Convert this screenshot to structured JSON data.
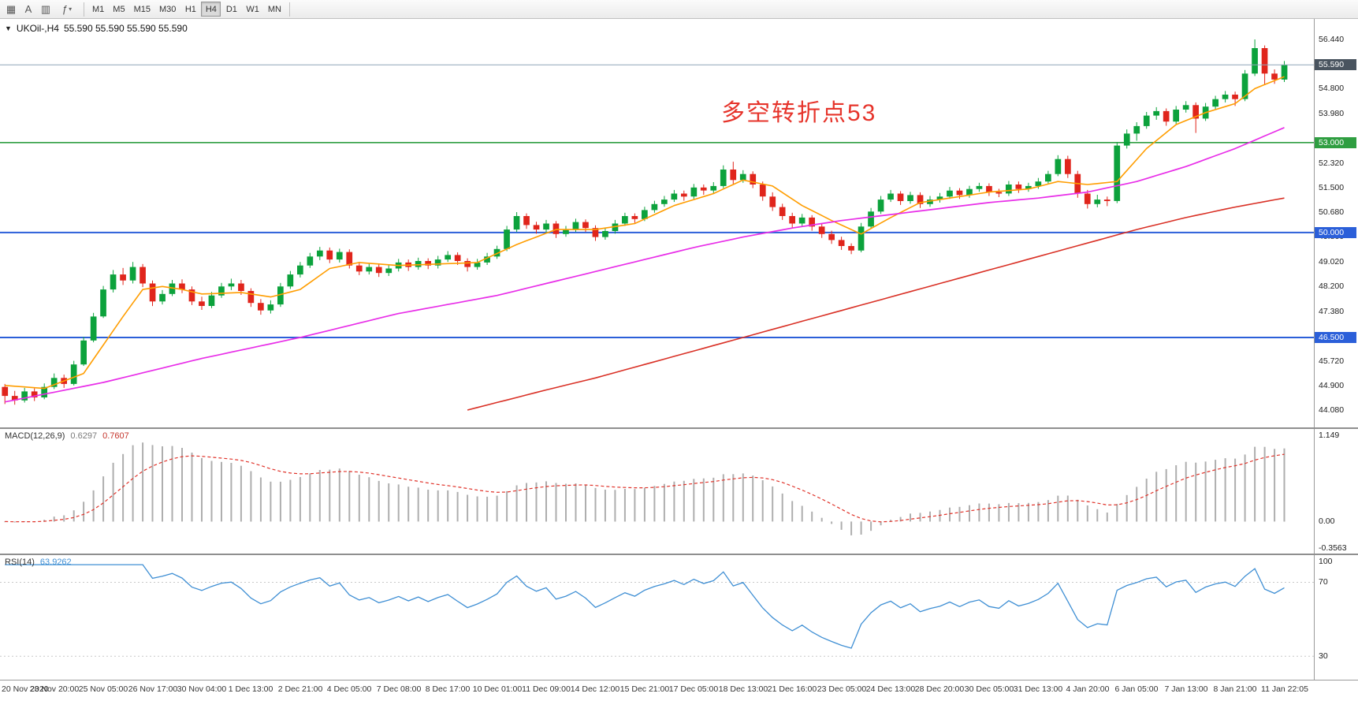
{
  "toolbar": {
    "icons": [
      {
        "name": "chart-grid-icon",
        "glyph": "▦"
      },
      {
        "name": "text-tool-icon",
        "glyph": "A"
      },
      {
        "name": "chart-type-icon",
        "glyph": "▥"
      },
      {
        "name": "indicators-icon",
        "glyph": "ƒ"
      },
      {
        "name": "caret-down-icon",
        "glyph": "▾"
      }
    ],
    "timeframes": [
      "M1",
      "M5",
      "M15",
      "M30",
      "H1",
      "H4",
      "D1",
      "W1",
      "MN"
    ],
    "active_timeframe": "H4"
  },
  "chart": {
    "header": {
      "collapse_icon": "▼",
      "symbol": "UKOil-,H4",
      "ohlc": "55.590 55.590 55.590 55.590"
    },
    "annotation": {
      "text": "多空转折点53",
      "color": "#e6342b"
    },
    "ylim": [
      44.08,
      56.44
    ],
    "price_axis_labels": [
      "56.440",
      "54.800",
      "53.980",
      "52.320",
      "51.500",
      "50.680",
      "49.860",
      "49.020",
      "48.200",
      "47.380",
      "45.720",
      "44.900",
      "44.080"
    ],
    "price_tags": [
      {
        "value": 55.59,
        "label": "55.590",
        "bg": "#49545f"
      },
      {
        "value": 53.0,
        "label": "53.000",
        "bg": "#2f9e41"
      },
      {
        "value": 50.0,
        "label": "50.000",
        "bg": "#2b5fd9"
      },
      {
        "value": 46.5,
        "label": "46.500",
        "bg": "#2b5fd9"
      }
    ],
    "hlines": [
      {
        "value": 53.0,
        "color": "#2f9e41",
        "width": 1.6
      },
      {
        "value": 50.0,
        "color": "#2b5fd9",
        "width": 2
      },
      {
        "value": 46.5,
        "color": "#2b5fd9",
        "width": 2
      }
    ],
    "bid_line": {
      "value": 55.59,
      "color": "#8fa6b8"
    }
  },
  "macd_panel": {
    "label": "MACD(12,26,9)",
    "value_main": "0.6297",
    "value_signal": "0.7607",
    "axis_labels": [
      "1.149",
      "0.00",
      "-0.3563"
    ],
    "ylim": [
      -0.3563,
      1.149
    ]
  },
  "rsi_panel": {
    "label": "RSI(14)",
    "value": "63.9262",
    "axis_labels": [
      "100",
      "70",
      "30"
    ],
    "levels": [
      70,
      30
    ],
    "ylim": [
      19,
      83
    ]
  },
  "time_axis": {
    "labels": [
      "20 Nov 2020",
      "23 Nov 20:00",
      "25 Nov 05:00",
      "26 Nov 17:00",
      "30 Nov 04:00",
      "1 Dec 13:00",
      "2 Dec 21:00",
      "4 Dec 05:00",
      "7 Dec 08:00",
      "8 Dec 17:00",
      "10 Dec 01:00",
      "11 Dec 09:00",
      "14 Dec 12:00",
      "15 Dec 21:00",
      "17 Dec 05:00",
      "18 Dec 13:00",
      "21 Dec 16:00",
      "23 Dec 05:00",
      "24 Dec 13:00",
      "28 Dec 20:00",
      "30 Dec 05:00",
      "31 Dec 13:00",
      "4 Jan 20:00",
      "6 Jan 05:00",
      "7 Jan 13:00",
      "8 Jan 21:00",
      "11 Jan 22:05"
    ],
    "labels_every_n_candles": 5
  },
  "chart_data": {
    "type": "candlestick",
    "symbol": "UKOil-",
    "timeframe": "H4",
    "up_color": "#0ca23c",
    "down_color": "#e0251c",
    "ylim": [
      44.08,
      56.44
    ],
    "candles": [
      [
        44.85,
        44.95,
        44.28,
        44.55
      ],
      [
        44.55,
        44.72,
        44.26,
        44.4
      ],
      [
        44.4,
        44.82,
        44.33,
        44.7
      ],
      [
        44.7,
        44.8,
        44.38,
        44.5
      ],
      [
        44.5,
        44.97,
        44.44,
        44.85
      ],
      [
        44.85,
        45.3,
        44.78,
        45.15
      ],
      [
        45.15,
        45.26,
        44.82,
        44.95
      ],
      [
        44.95,
        45.72,
        44.9,
        45.6
      ],
      [
        45.6,
        46.52,
        45.55,
        46.4
      ],
      [
        46.4,
        47.32,
        46.34,
        47.2
      ],
      [
        47.2,
        48.22,
        47.15,
        48.1
      ],
      [
        48.1,
        48.75,
        48.0,
        48.6
      ],
      [
        48.6,
        48.82,
        48.25,
        48.4
      ],
      [
        48.4,
        49.02,
        48.3,
        48.85
      ],
      [
        48.85,
        48.95,
        48.18,
        48.3
      ],
      [
        48.3,
        48.4,
        47.55,
        47.7
      ],
      [
        47.7,
        48.08,
        47.6,
        47.95
      ],
      [
        47.95,
        48.42,
        47.88,
        48.3
      ],
      [
        48.3,
        48.44,
        47.98,
        48.1
      ],
      [
        48.1,
        48.2,
        47.58,
        47.7
      ],
      [
        47.7,
        47.86,
        47.42,
        47.55
      ],
      [
        47.55,
        48.02,
        47.48,
        47.9
      ],
      [
        47.9,
        48.32,
        47.82,
        48.2
      ],
      [
        48.2,
        48.46,
        48.08,
        48.3
      ],
      [
        48.3,
        48.42,
        47.92,
        48.05
      ],
      [
        48.05,
        48.14,
        47.52,
        47.65
      ],
      [
        47.65,
        47.78,
        47.26,
        47.4
      ],
      [
        47.4,
        47.74,
        47.3,
        47.6
      ],
      [
        47.6,
        48.32,
        47.52,
        48.2
      ],
      [
        48.2,
        48.72,
        48.12,
        48.6
      ],
      [
        48.6,
        49.02,
        48.5,
        48.9
      ],
      [
        48.9,
        49.32,
        48.82,
        49.2
      ],
      [
        49.2,
        49.52,
        49.08,
        49.4
      ],
      [
        49.4,
        49.5,
        48.98,
        49.1
      ],
      [
        49.1,
        49.46,
        49.0,
        49.35
      ],
      [
        49.35,
        49.44,
        48.8,
        48.9
      ],
      [
        48.9,
        49.02,
        48.58,
        48.7
      ],
      [
        48.7,
        48.98,
        48.6,
        48.85
      ],
      [
        48.85,
        48.95,
        48.52,
        48.65
      ],
      [
        48.65,
        48.92,
        48.55,
        48.8
      ],
      [
        48.8,
        49.12,
        48.7,
        49.0
      ],
      [
        49.0,
        49.1,
        48.72,
        48.85
      ],
      [
        48.85,
        49.16,
        48.76,
        49.05
      ],
      [
        49.05,
        49.14,
        48.78,
        48.9
      ],
      [
        48.9,
        49.22,
        48.8,
        49.1
      ],
      [
        49.1,
        49.38,
        49.02,
        49.25
      ],
      [
        49.25,
        49.34,
        48.92,
        49.05
      ],
      [
        49.05,
        49.14,
        48.7,
        48.85
      ],
      [
        48.85,
        49.12,
        48.76,
        49.0
      ],
      [
        49.0,
        49.32,
        48.92,
        49.2
      ],
      [
        49.2,
        49.56,
        49.12,
        49.45
      ],
      [
        49.45,
        50.22,
        49.38,
        50.1
      ],
      [
        50.1,
        50.68,
        50.02,
        50.55
      ],
      [
        50.55,
        50.64,
        50.12,
        50.25
      ],
      [
        50.25,
        50.36,
        49.96,
        50.1
      ],
      [
        50.1,
        50.42,
        50.0,
        50.3
      ],
      [
        50.3,
        50.38,
        49.82,
        49.95
      ],
      [
        49.95,
        50.22,
        49.86,
        50.1
      ],
      [
        50.1,
        50.46,
        50.02,
        50.35
      ],
      [
        50.35,
        50.44,
        50.02,
        50.15
      ],
      [
        50.15,
        50.24,
        49.72,
        49.85
      ],
      [
        49.85,
        50.16,
        49.76,
        50.05
      ],
      [
        50.05,
        50.42,
        49.96,
        50.3
      ],
      [
        50.3,
        50.66,
        50.22,
        50.55
      ],
      [
        50.55,
        50.64,
        50.32,
        50.45
      ],
      [
        50.45,
        50.86,
        50.38,
        50.75
      ],
      [
        50.75,
        51.06,
        50.66,
        50.95
      ],
      [
        50.95,
        51.22,
        50.86,
        51.1
      ],
      [
        51.1,
        51.42,
        51.02,
        51.3
      ],
      [
        51.3,
        51.4,
        51.06,
        51.2
      ],
      [
        51.2,
        51.62,
        51.12,
        51.5
      ],
      [
        51.5,
        51.6,
        51.26,
        51.4
      ],
      [
        51.4,
        51.68,
        51.3,
        51.55
      ],
      [
        51.55,
        52.24,
        51.48,
        52.1
      ],
      [
        52.1,
        52.36,
        51.62,
        51.75
      ],
      [
        51.75,
        52.08,
        51.66,
        51.95
      ],
      [
        51.95,
        52.04,
        51.48,
        51.6
      ],
      [
        51.6,
        51.7,
        51.06,
        51.2
      ],
      [
        51.2,
        51.34,
        50.72,
        50.85
      ],
      [
        50.85,
        50.96,
        50.42,
        50.55
      ],
      [
        50.55,
        50.66,
        50.16,
        50.3
      ],
      [
        50.3,
        50.62,
        50.22,
        50.5
      ],
      [
        50.5,
        50.58,
        50.06,
        50.2
      ],
      [
        50.2,
        50.3,
        49.82,
        49.95
      ],
      [
        49.95,
        50.06,
        49.62,
        49.75
      ],
      [
        49.75,
        49.86,
        49.42,
        49.55
      ],
      [
        49.55,
        49.64,
        49.28,
        49.4
      ],
      [
        49.4,
        50.32,
        49.34,
        50.2
      ],
      [
        50.2,
        50.82,
        50.12,
        50.7
      ],
      [
        50.7,
        51.22,
        50.62,
        51.1
      ],
      [
        51.1,
        51.42,
        51.02,
        51.3
      ],
      [
        51.3,
        51.38,
        50.92,
        51.05
      ],
      [
        51.05,
        51.36,
        50.96,
        51.25
      ],
      [
        51.25,
        51.34,
        50.82,
        50.95
      ],
      [
        50.95,
        51.22,
        50.86,
        51.1
      ],
      [
        51.1,
        51.32,
        51.0,
        51.2
      ],
      [
        51.2,
        51.52,
        51.12,
        51.4
      ],
      [
        51.4,
        51.48,
        51.12,
        51.25
      ],
      [
        51.25,
        51.56,
        51.16,
        51.45
      ],
      [
        51.45,
        51.66,
        51.36,
        51.55
      ],
      [
        51.55,
        51.64,
        51.22,
        51.35
      ],
      [
        51.35,
        51.46,
        51.18,
        51.3
      ],
      [
        51.3,
        51.72,
        51.22,
        51.6
      ],
      [
        51.6,
        51.7,
        51.32,
        51.45
      ],
      [
        51.45,
        51.66,
        51.36,
        51.55
      ],
      [
        51.55,
        51.82,
        51.46,
        51.7
      ],
      [
        51.7,
        52.06,
        51.62,
        51.95
      ],
      [
        51.95,
        52.58,
        51.88,
        52.45
      ],
      [
        52.45,
        52.56,
        51.82,
        51.95
      ],
      [
        51.95,
        52.06,
        51.16,
        51.3
      ],
      [
        51.3,
        51.42,
        50.8,
        50.95
      ],
      [
        50.95,
        51.26,
        50.84,
        51.1
      ],
      [
        51.1,
        51.2,
        50.88,
        51.05
      ],
      [
        51.05,
        53.02,
        50.98,
        52.9
      ],
      [
        52.9,
        53.44,
        52.8,
        53.3
      ],
      [
        53.3,
        53.68,
        53.06,
        53.55
      ],
      [
        53.55,
        54.02,
        53.46,
        53.9
      ],
      [
        53.9,
        54.18,
        53.76,
        54.05
      ],
      [
        54.05,
        54.14,
        53.56,
        53.7
      ],
      [
        53.7,
        54.22,
        53.62,
        54.1
      ],
      [
        54.1,
        54.38,
        54.0,
        54.25
      ],
      [
        54.25,
        54.34,
        53.32,
        53.8
      ],
      [
        53.8,
        54.32,
        53.72,
        54.2
      ],
      [
        54.2,
        54.56,
        54.1,
        54.45
      ],
      [
        54.45,
        54.72,
        54.34,
        54.6
      ],
      [
        54.6,
        54.7,
        54.22,
        54.45
      ],
      [
        54.45,
        55.42,
        54.38,
        55.3
      ],
      [
        55.3,
        56.44,
        55.22,
        56.15
      ],
      [
        56.15,
        56.24,
        54.92,
        55.3
      ],
      [
        55.3,
        55.44,
        54.96,
        55.1
      ],
      [
        55.1,
        55.72,
        55.02,
        55.59
      ]
    ],
    "overlays": [
      {
        "name": "ma-fast-orange",
        "color": "#ff9d00",
        "width": 1.6,
        "points": [
          [
            0,
            44.9
          ],
          [
            4,
            44.8
          ],
          [
            8,
            45.3
          ],
          [
            12,
            47.2
          ],
          [
            14,
            48.1
          ],
          [
            16,
            48.2
          ],
          [
            18,
            48.1
          ],
          [
            20,
            47.95
          ],
          [
            24,
            48.0
          ],
          [
            27,
            47.85
          ],
          [
            30,
            48.1
          ],
          [
            33,
            48.8
          ],
          [
            36,
            49.0
          ],
          [
            40,
            48.9
          ],
          [
            44,
            48.95
          ],
          [
            48,
            49.0
          ],
          [
            52,
            49.6
          ],
          [
            56,
            50.1
          ],
          [
            60,
            50.1
          ],
          [
            64,
            50.3
          ],
          [
            68,
            50.9
          ],
          [
            72,
            51.3
          ],
          [
            75,
            51.75
          ],
          [
            78,
            51.55
          ],
          [
            81,
            50.9
          ],
          [
            84,
            50.4
          ],
          [
            87,
            49.95
          ],
          [
            90,
            50.5
          ],
          [
            93,
            51.0
          ],
          [
            96,
            51.15
          ],
          [
            100,
            51.35
          ],
          [
            104,
            51.45
          ],
          [
            107,
            51.7
          ],
          [
            110,
            51.6
          ],
          [
            113,
            51.7
          ],
          [
            116,
            52.8
          ],
          [
            119,
            53.6
          ],
          [
            122,
            54.0
          ],
          [
            125,
            54.3
          ],
          [
            127,
            54.8
          ],
          [
            130,
            55.2
          ]
        ]
      },
      {
        "name": "ma-medium-magenta",
        "color": "#e82ee8",
        "width": 1.7,
        "points": [
          [
            0,
            44.35
          ],
          [
            10,
            45.0
          ],
          [
            20,
            45.8
          ],
          [
            30,
            46.5
          ],
          [
            40,
            47.3
          ],
          [
            50,
            47.9
          ],
          [
            55,
            48.3
          ],
          [
            60,
            48.7
          ],
          [
            65,
            49.1
          ],
          [
            70,
            49.5
          ],
          [
            75,
            49.85
          ],
          [
            80,
            50.15
          ],
          [
            85,
            50.4
          ],
          [
            90,
            50.6
          ],
          [
            95,
            50.8
          ],
          [
            100,
            51.0
          ],
          [
            105,
            51.15
          ],
          [
            110,
            51.35
          ],
          [
            115,
            51.7
          ],
          [
            120,
            52.2
          ],
          [
            125,
            52.8
          ],
          [
            130,
            53.5
          ]
        ]
      },
      {
        "name": "ma-slow-red",
        "color": "#d93025",
        "width": 1.6,
        "points": [
          [
            47,
            44.08
          ],
          [
            55,
            44.75
          ],
          [
            60,
            45.15
          ],
          [
            65,
            45.6
          ],
          [
            70,
            46.05
          ],
          [
            75,
            46.5
          ],
          [
            80,
            46.95
          ],
          [
            85,
            47.4
          ],
          [
            90,
            47.85
          ],
          [
            95,
            48.3
          ],
          [
            100,
            48.75
          ],
          [
            105,
            49.2
          ],
          [
            110,
            49.65
          ],
          [
            115,
            50.1
          ],
          [
            120,
            50.5
          ],
          [
            125,
            50.85
          ],
          [
            130,
            51.15
          ]
        ]
      }
    ],
    "indicators": [
      {
        "name": "MACD",
        "params": [
          12,
          26,
          9
        ],
        "display_values": [
          0.6297,
          0.7607
        ],
        "ylim": [
          -0.3563,
          1.149
        ]
      },
      {
        "name": "RSI",
        "params": [
          14
        ],
        "display_values": [
          63.9262
        ],
        "levels": [
          100,
          70,
          30
        ]
      }
    ]
  }
}
